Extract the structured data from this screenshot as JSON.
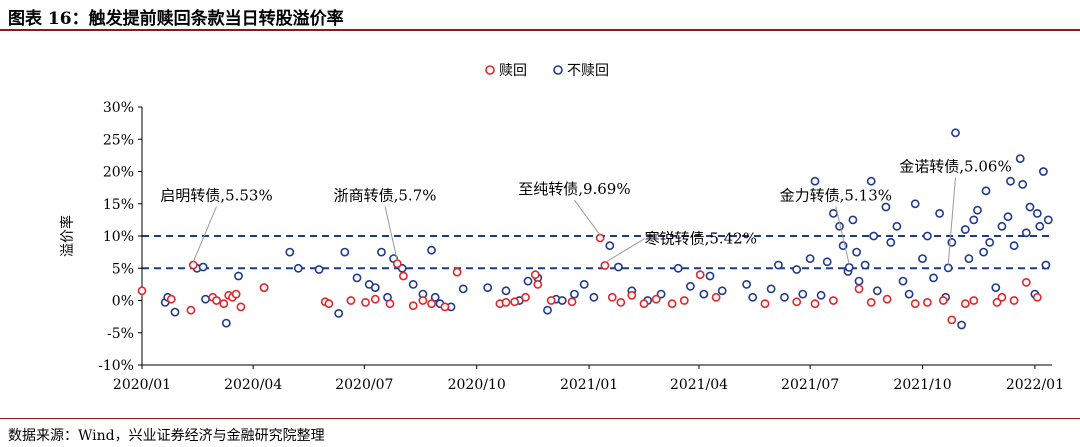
{
  "title": "图表 16：触发提前赎回条款当日转股溢价率",
  "source": "数据来源：Wind，兴业证券经济与金融研究院整理",
  "colors": {
    "redeem": "#e0262b",
    "not_redeem": "#1f3a8a",
    "refline": "#1f3a8a",
    "header_rule": "#8a1a1a"
  },
  "chart_data": {
    "type": "scatter",
    "ylabel": "溢价率",
    "y_unit": "%",
    "ylim": [
      -10,
      30
    ],
    "yticks": [
      -10,
      -5,
      0,
      5,
      10,
      15,
      20,
      25,
      30
    ],
    "ytick_labels": [
      "-10%",
      "-5%",
      "0%",
      "5%",
      "10%",
      "15%",
      "20%",
      "25%",
      "30%"
    ],
    "xlim": [
      "2020-01-01",
      "2022-01-15"
    ],
    "xticks": [
      "2020-01-01",
      "2020-04-01",
      "2020-07-01",
      "2020-10-01",
      "2021-01-01",
      "2021-04-01",
      "2021-07-01",
      "2021-10-01",
      "2022-01-01"
    ],
    "xtick_labels": [
      "2020/01",
      "2020/04",
      "2020/07",
      "2020/10",
      "2021/01",
      "2021/04",
      "2021/07",
      "2021/10",
      "2022/01"
    ],
    "legend_position": "top-center",
    "reference_lines": [
      10,
      5
    ],
    "series": [
      {
        "name": "赎回",
        "color": "#e0262b",
        "points": [
          [
            "2020-01-01",
            1.5
          ],
          [
            "2020-01-25",
            0.2
          ],
          [
            "2020-02-10",
            -1.5
          ],
          [
            "2020-02-12",
            5.5
          ],
          [
            "2020-02-28",
            0.5
          ],
          [
            "2020-03-02",
            0.0
          ],
          [
            "2020-03-08",
            -0.5
          ],
          [
            "2020-03-12",
            0.8
          ],
          [
            "2020-03-15",
            0.5
          ],
          [
            "2020-03-18",
            1.0
          ],
          [
            "2020-03-22",
            -1.0
          ],
          [
            "2020-04-10",
            2.0
          ],
          [
            "2020-05-30",
            -0.2
          ],
          [
            "2020-06-02",
            -0.5
          ],
          [
            "2020-06-20",
            0.0
          ],
          [
            "2020-07-02",
            -0.3
          ],
          [
            "2020-07-10",
            0.2
          ],
          [
            "2020-07-22",
            -0.5
          ],
          [
            "2020-07-28",
            5.7
          ],
          [
            "2020-08-02",
            3.8
          ],
          [
            "2020-08-10",
            -0.8
          ],
          [
            "2020-08-18",
            0.0
          ],
          [
            "2020-08-25",
            -0.5
          ],
          [
            "2020-09-05",
            -1.0
          ],
          [
            "2020-09-15",
            4.4
          ],
          [
            "2020-10-20",
            -0.5
          ],
          [
            "2020-10-25",
            -0.3
          ],
          [
            "2020-11-01",
            -0.2
          ],
          [
            "2020-11-10",
            0.5
          ],
          [
            "2020-11-18",
            4.0
          ],
          [
            "2020-11-20",
            2.5
          ],
          [
            "2020-12-01",
            0.0
          ],
          [
            "2020-12-18",
            -0.2
          ],
          [
            "2021-01-10",
            9.69
          ],
          [
            "2021-01-14",
            5.42
          ],
          [
            "2021-01-20",
            0.5
          ],
          [
            "2021-01-27",
            -0.3
          ],
          [
            "2021-02-05",
            0.8
          ],
          [
            "2021-02-15",
            -0.5
          ],
          [
            "2021-02-25",
            0.2
          ],
          [
            "2021-03-10",
            -0.5
          ],
          [
            "2021-03-20",
            0.0
          ],
          [
            "2021-04-02",
            4.0
          ],
          [
            "2021-04-15",
            0.5
          ],
          [
            "2021-05-25",
            -0.5
          ],
          [
            "2021-06-20",
            -0.2
          ],
          [
            "2021-07-05",
            -0.5
          ],
          [
            "2021-07-20",
            0.0
          ],
          [
            "2021-08-10",
            1.8
          ],
          [
            "2021-08-20",
            -0.3
          ],
          [
            "2021-09-02",
            0.2
          ],
          [
            "2021-09-25",
            -0.5
          ],
          [
            "2021-10-05",
            -0.3
          ],
          [
            "2021-10-18",
            0.0
          ],
          [
            "2021-10-25",
            -3.0
          ],
          [
            "2021-11-05",
            -0.5
          ],
          [
            "2021-11-12",
            0.0
          ],
          [
            "2021-12-01",
            -0.3
          ],
          [
            "2021-12-05",
            0.5
          ],
          [
            "2021-12-15",
            0.0
          ],
          [
            "2021-12-25",
            2.8
          ],
          [
            "2022-01-03",
            0.5
          ]
        ]
      },
      {
        "name": "不赎回",
        "color": "#1f3a8a",
        "points": [
          [
            "2020-01-20",
            -0.3
          ],
          [
            "2020-01-22",
            0.5
          ],
          [
            "2020-01-28",
            -1.8
          ],
          [
            "2020-02-15",
            5.0
          ],
          [
            "2020-02-20",
            5.2
          ],
          [
            "2020-02-22",
            0.2
          ],
          [
            "2020-03-10",
            -3.5
          ],
          [
            "2020-03-20",
            3.8
          ],
          [
            "2020-04-10",
            2.0
          ],
          [
            "2020-05-01",
            7.5
          ],
          [
            "2020-05-08",
            5.0
          ],
          [
            "2020-05-25",
            4.8
          ],
          [
            "2020-06-10",
            -2.0
          ],
          [
            "2020-06-15",
            7.5
          ],
          [
            "2020-06-25",
            3.5
          ],
          [
            "2020-07-05",
            2.5
          ],
          [
            "2020-07-10",
            2.0
          ],
          [
            "2020-07-15",
            7.5
          ],
          [
            "2020-07-20",
            0.5
          ],
          [
            "2020-07-25",
            6.5
          ],
          [
            "2020-08-01",
            5.0
          ],
          [
            "2020-08-10",
            2.5
          ],
          [
            "2020-08-18",
            1.0
          ],
          [
            "2020-08-25",
            7.8
          ],
          [
            "2020-08-28",
            0.5
          ],
          [
            "2020-09-01",
            -0.5
          ],
          [
            "2020-09-10",
            -1.0
          ],
          [
            "2020-09-20",
            1.8
          ],
          [
            "2020-10-10",
            2.0
          ],
          [
            "2020-10-25",
            1.5
          ],
          [
            "2020-11-05",
            0.0
          ],
          [
            "2020-11-12",
            3.0
          ],
          [
            "2020-11-20",
            3.5
          ],
          [
            "2020-11-28",
            -1.5
          ],
          [
            "2020-12-05",
            0.2
          ],
          [
            "2020-12-10",
            0.0
          ],
          [
            "2020-12-20",
            1.0
          ],
          [
            "2020-12-28",
            2.5
          ],
          [
            "2021-01-05",
            0.5
          ],
          [
            "2021-01-18",
            8.5
          ],
          [
            "2021-01-25",
            5.2
          ],
          [
            "2021-02-05",
            1.5
          ],
          [
            "2021-02-18",
            0.0
          ],
          [
            "2021-03-01",
            1.0
          ],
          [
            "2021-03-15",
            5.0
          ],
          [
            "2021-03-25",
            2.2
          ],
          [
            "2021-04-05",
            1.0
          ],
          [
            "2021-04-10",
            3.8
          ],
          [
            "2021-04-20",
            1.5
          ],
          [
            "2021-05-10",
            2.5
          ],
          [
            "2021-05-15",
            0.5
          ],
          [
            "2021-05-30",
            1.8
          ],
          [
            "2021-06-05",
            5.5
          ],
          [
            "2021-06-10",
            0.5
          ],
          [
            "2021-06-20",
            4.8
          ],
          [
            "2021-06-25",
            1.0
          ],
          [
            "2021-07-01",
            6.5
          ],
          [
            "2021-07-05",
            18.5
          ],
          [
            "2021-07-10",
            0.8
          ],
          [
            "2021-07-15",
            6.0
          ],
          [
            "2021-07-20",
            13.5
          ],
          [
            "2021-07-25",
            11.5
          ],
          [
            "2021-07-28",
            8.5
          ],
          [
            "2021-08-01",
            4.5
          ],
          [
            "2021-08-02",
            5.13
          ],
          [
            "2021-08-05",
            12.5
          ],
          [
            "2021-08-08",
            7.5
          ],
          [
            "2021-08-10",
            3.0
          ],
          [
            "2021-08-15",
            5.5
          ],
          [
            "2021-08-20",
            18.5
          ],
          [
            "2021-08-22",
            10.0
          ],
          [
            "2021-08-25",
            1.5
          ],
          [
            "2021-09-01",
            14.5
          ],
          [
            "2021-09-05",
            9.0
          ],
          [
            "2021-09-10",
            11.5
          ],
          [
            "2021-09-15",
            3.0
          ],
          [
            "2021-09-20",
            1.0
          ],
          [
            "2021-09-25",
            15.0
          ],
          [
            "2021-10-01",
            6.5
          ],
          [
            "2021-10-05",
            10.0
          ],
          [
            "2021-10-10",
            3.5
          ],
          [
            "2021-10-15",
            13.5
          ],
          [
            "2021-10-20",
            0.5
          ],
          [
            "2021-10-22",
            5.06
          ],
          [
            "2021-10-25",
            9.0
          ],
          [
            "2021-10-28",
            26.0
          ],
          [
            "2021-11-02",
            -3.8
          ],
          [
            "2021-11-05",
            11.0
          ],
          [
            "2021-11-08",
            6.5
          ],
          [
            "2021-11-12",
            12.5
          ],
          [
            "2021-11-15",
            14.0
          ],
          [
            "2021-11-20",
            7.5
          ],
          [
            "2021-11-22",
            17.0
          ],
          [
            "2021-11-25",
            9.0
          ],
          [
            "2021-11-30",
            2.0
          ],
          [
            "2021-12-05",
            11.5
          ],
          [
            "2021-12-10",
            13.0
          ],
          [
            "2021-12-12",
            18.5
          ],
          [
            "2021-12-15",
            8.5
          ],
          [
            "2021-12-20",
            22.0
          ],
          [
            "2021-12-22",
            18.0
          ],
          [
            "2021-12-25",
            10.5
          ],
          [
            "2021-12-28",
            14.5
          ],
          [
            "2022-01-01",
            1.0
          ],
          [
            "2022-01-03",
            13.5
          ],
          [
            "2022-01-05",
            11.5
          ],
          [
            "2022-01-08",
            20.0
          ],
          [
            "2022-01-10",
            5.5
          ],
          [
            "2022-01-12",
            12.5
          ]
        ]
      }
    ],
    "annotations": [
      {
        "text": "启明转债,5.53%",
        "x": "2020-02-12",
        "y": 5.53,
        "anchor_text_x": "2020-03-02",
        "anchor_text_y": 15.5
      },
      {
        "text": "浙商转债,5.7%",
        "x": "2020-07-28",
        "y": 5.7,
        "anchor_text_x": "2020-07-18",
        "anchor_text_y": 15.5
      },
      {
        "text": "至纯转债,9.69%",
        "x": "2021-01-10",
        "y": 9.69,
        "anchor_text_x": "2020-12-20",
        "anchor_text_y": 16.5
      },
      {
        "text": "寒锐转债,5.42%",
        "x": "2021-01-14",
        "y": 5.42,
        "anchor_text_x": "2021-02-22",
        "anchor_text_y": 8.8
      },
      {
        "text": "金力转债,5.13%",
        "x": "2021-08-02",
        "y": 5.13,
        "anchor_text_x": "2021-07-22",
        "anchor_text_y": 15.5
      },
      {
        "text": "金诺转债,5.06%",
        "x": "2021-10-22",
        "y": 5.06,
        "anchor_text_x": "2021-10-28",
        "anchor_text_y": 20.0
      }
    ]
  }
}
